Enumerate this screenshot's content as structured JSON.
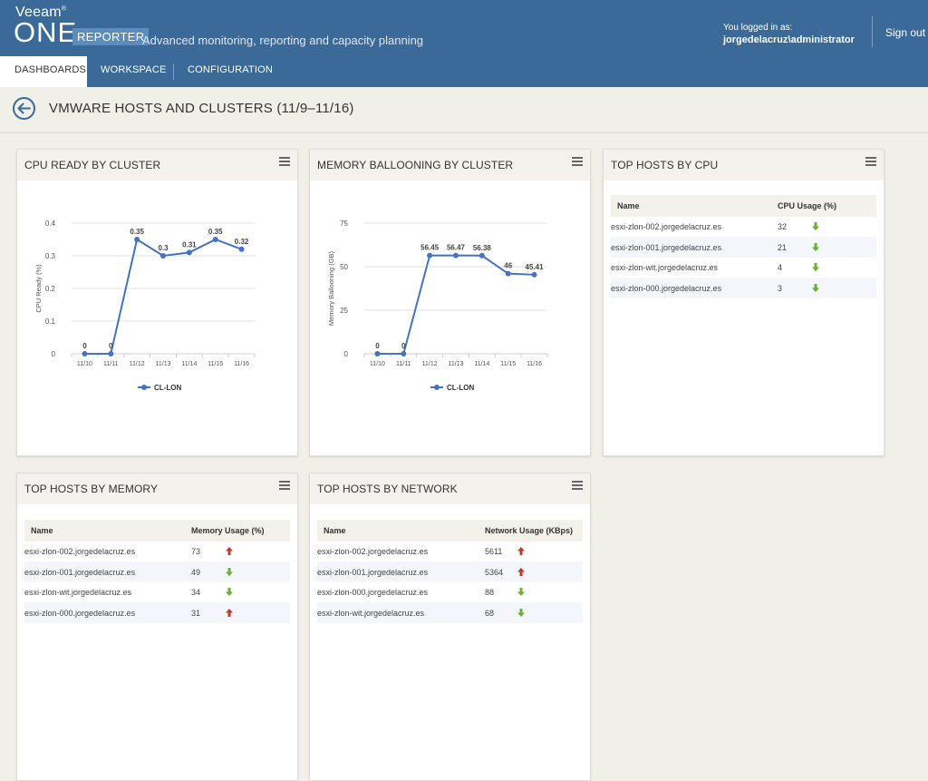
{
  "header": {
    "brand_veeam": "Veeam",
    "brand_one": "ONE",
    "brand_reporter": "REPORTER",
    "tagline": "Advanced monitoring, reporting and capacity planning",
    "login_label": "You logged in as:",
    "login_user": "jorgedelacruz\\administrator",
    "signout": "Sign out"
  },
  "nav": {
    "tabs": [
      {
        "label": "DASHBOARDS",
        "active": true
      },
      {
        "label": "WORKSPACE",
        "active": false
      },
      {
        "label": "CONFIGURATION",
        "active": false
      }
    ]
  },
  "page": {
    "title": "VMWARE HOSTS AND CLUSTERS (11/9–11/16)"
  },
  "colors": {
    "accent": "#3b6a99",
    "series": "#4472c4",
    "arrow_up": "#c0392b",
    "arrow_down": "#66b32e"
  },
  "panels": {
    "cpu_ready": {
      "title": "CPU READY BY CLUSTER"
    },
    "mem_balloon": {
      "title": "MEMORY BALLOONING BY CLUSTER"
    },
    "top_cpu": {
      "title": "TOP HOSTS BY CPU",
      "col_name": "Name",
      "col_value": "CPU Usage (%)",
      "rows": [
        {
          "name": "esxi-zlon-002.jorgedelacruz.es",
          "value": "32",
          "trend": "down"
        },
        {
          "name": "esxi-zlon-001.jorgedelacruz.es",
          "value": "21",
          "trend": "down"
        },
        {
          "name": "esxi-zlon-wit.jorgedelacruz.es",
          "value": "4",
          "trend": "down"
        },
        {
          "name": "esxi-zlon-000.jorgedelacruz.es",
          "value": "3",
          "trend": "down"
        }
      ]
    },
    "top_mem": {
      "title": "TOP HOSTS BY MEMORY",
      "col_name": "Name",
      "col_value": "Memory Usage (%)",
      "rows": [
        {
          "name": "esxi-zlon-002.jorgedelacruz.es",
          "value": "73",
          "trend": "up"
        },
        {
          "name": "esxi-zlon-001.jorgedelacruz.es",
          "value": "49",
          "trend": "down"
        },
        {
          "name": "esxi-zlon-wit.jorgedelacruz.es",
          "value": "34",
          "trend": "down"
        },
        {
          "name": "esxi-zlon-000.jorgedelacruz.es",
          "value": "31",
          "trend": "up"
        }
      ]
    },
    "top_net": {
      "title": "TOP HOSTS BY NETWORK",
      "col_name": "Name",
      "col_value": "Network Usage (KBps)",
      "rows": [
        {
          "name": "esxi-zlon-002.jorgedelacruz.es",
          "value": "5611",
          "trend": "up"
        },
        {
          "name": "esxi-zlon-001.jorgedelacruz.es",
          "value": "5364",
          "trend": "up"
        },
        {
          "name": "esxi-zlon-000.jorgedelacruz.es",
          "value": "88",
          "trend": "down"
        },
        {
          "name": "esxi-zlon-wit.jorgedelacruz.es",
          "value": "68",
          "trend": "down"
        }
      ]
    }
  },
  "chart_data": [
    {
      "id": "cpu_ready",
      "type": "line",
      "title": "CPU READY BY CLUSTER",
      "ylabel": "CPU Ready (%)",
      "xlabel": "",
      "categories": [
        "11/10",
        "11/11",
        "11/12",
        "11/13",
        "11/14",
        "11/15",
        "11/16"
      ],
      "yticks": [
        "0",
        "0.1",
        "0.2",
        "0.3",
        "0.4"
      ],
      "ylim": [
        0,
        0.4
      ],
      "series": [
        {
          "name": "CL-LON",
          "values": [
            0,
            0,
            0.35,
            0.3,
            0.31,
            0.35,
            0.32
          ],
          "labels": [
            "0",
            "0",
            "0.35",
            "0.3",
            "0.31",
            "0.35",
            "0.32"
          ]
        }
      ],
      "grid": true,
      "legend": "bottom"
    },
    {
      "id": "mem_balloon",
      "type": "line",
      "title": "MEMORY BALLOONING BY CLUSTER",
      "ylabel": "Memory Ballooning (GB)",
      "xlabel": "",
      "categories": [
        "11/10",
        "11/11",
        "11/12",
        "11/13",
        "11/14",
        "11/15",
        "11/16"
      ],
      "yticks": [
        "0",
        "25",
        "50",
        "75"
      ],
      "ylim": [
        0,
        75
      ],
      "series": [
        {
          "name": "CL-LON",
          "values": [
            0,
            0,
            56.45,
            56.47,
            56.38,
            46,
            45.41
          ],
          "labels": [
            "0",
            "0",
            "56.45",
            "56.47",
            "56.38",
            "46",
            "45.41"
          ]
        }
      ],
      "grid": true,
      "legend": "bottom"
    }
  ]
}
